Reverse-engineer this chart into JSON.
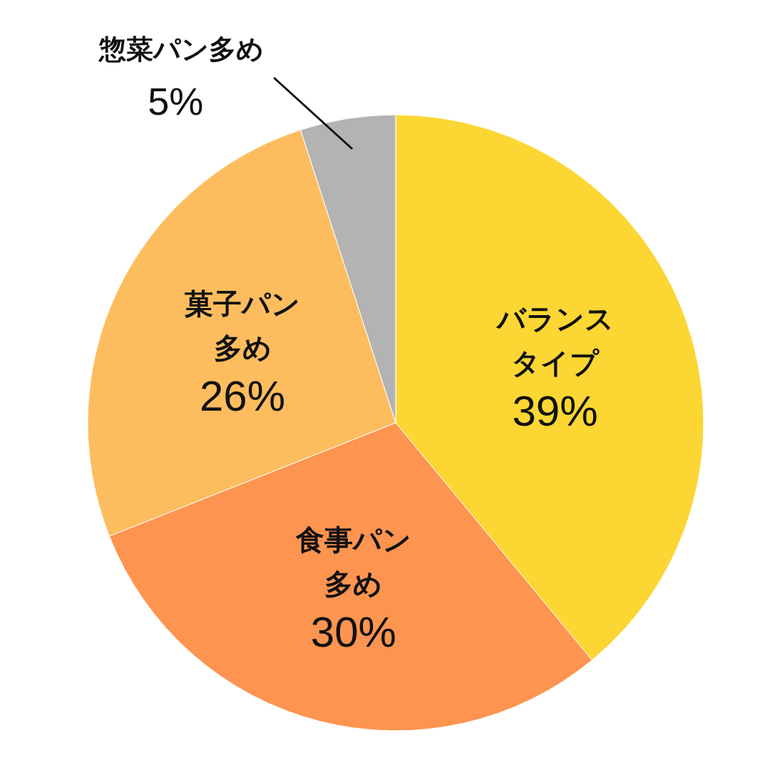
{
  "chart_data": {
    "type": "pie",
    "categories": [
      "バランスタイプ",
      "食事パン多め",
      "菓子パン多め",
      "惣菜パン多め"
    ],
    "values": [
      39,
      30,
      26,
      5
    ],
    "value_labels": [
      "39%",
      "30%",
      "26%",
      "5%"
    ],
    "colors": [
      "#fcd632",
      "#fd9450",
      "#fdbd5e",
      "#b3b3b3"
    ]
  }
}
